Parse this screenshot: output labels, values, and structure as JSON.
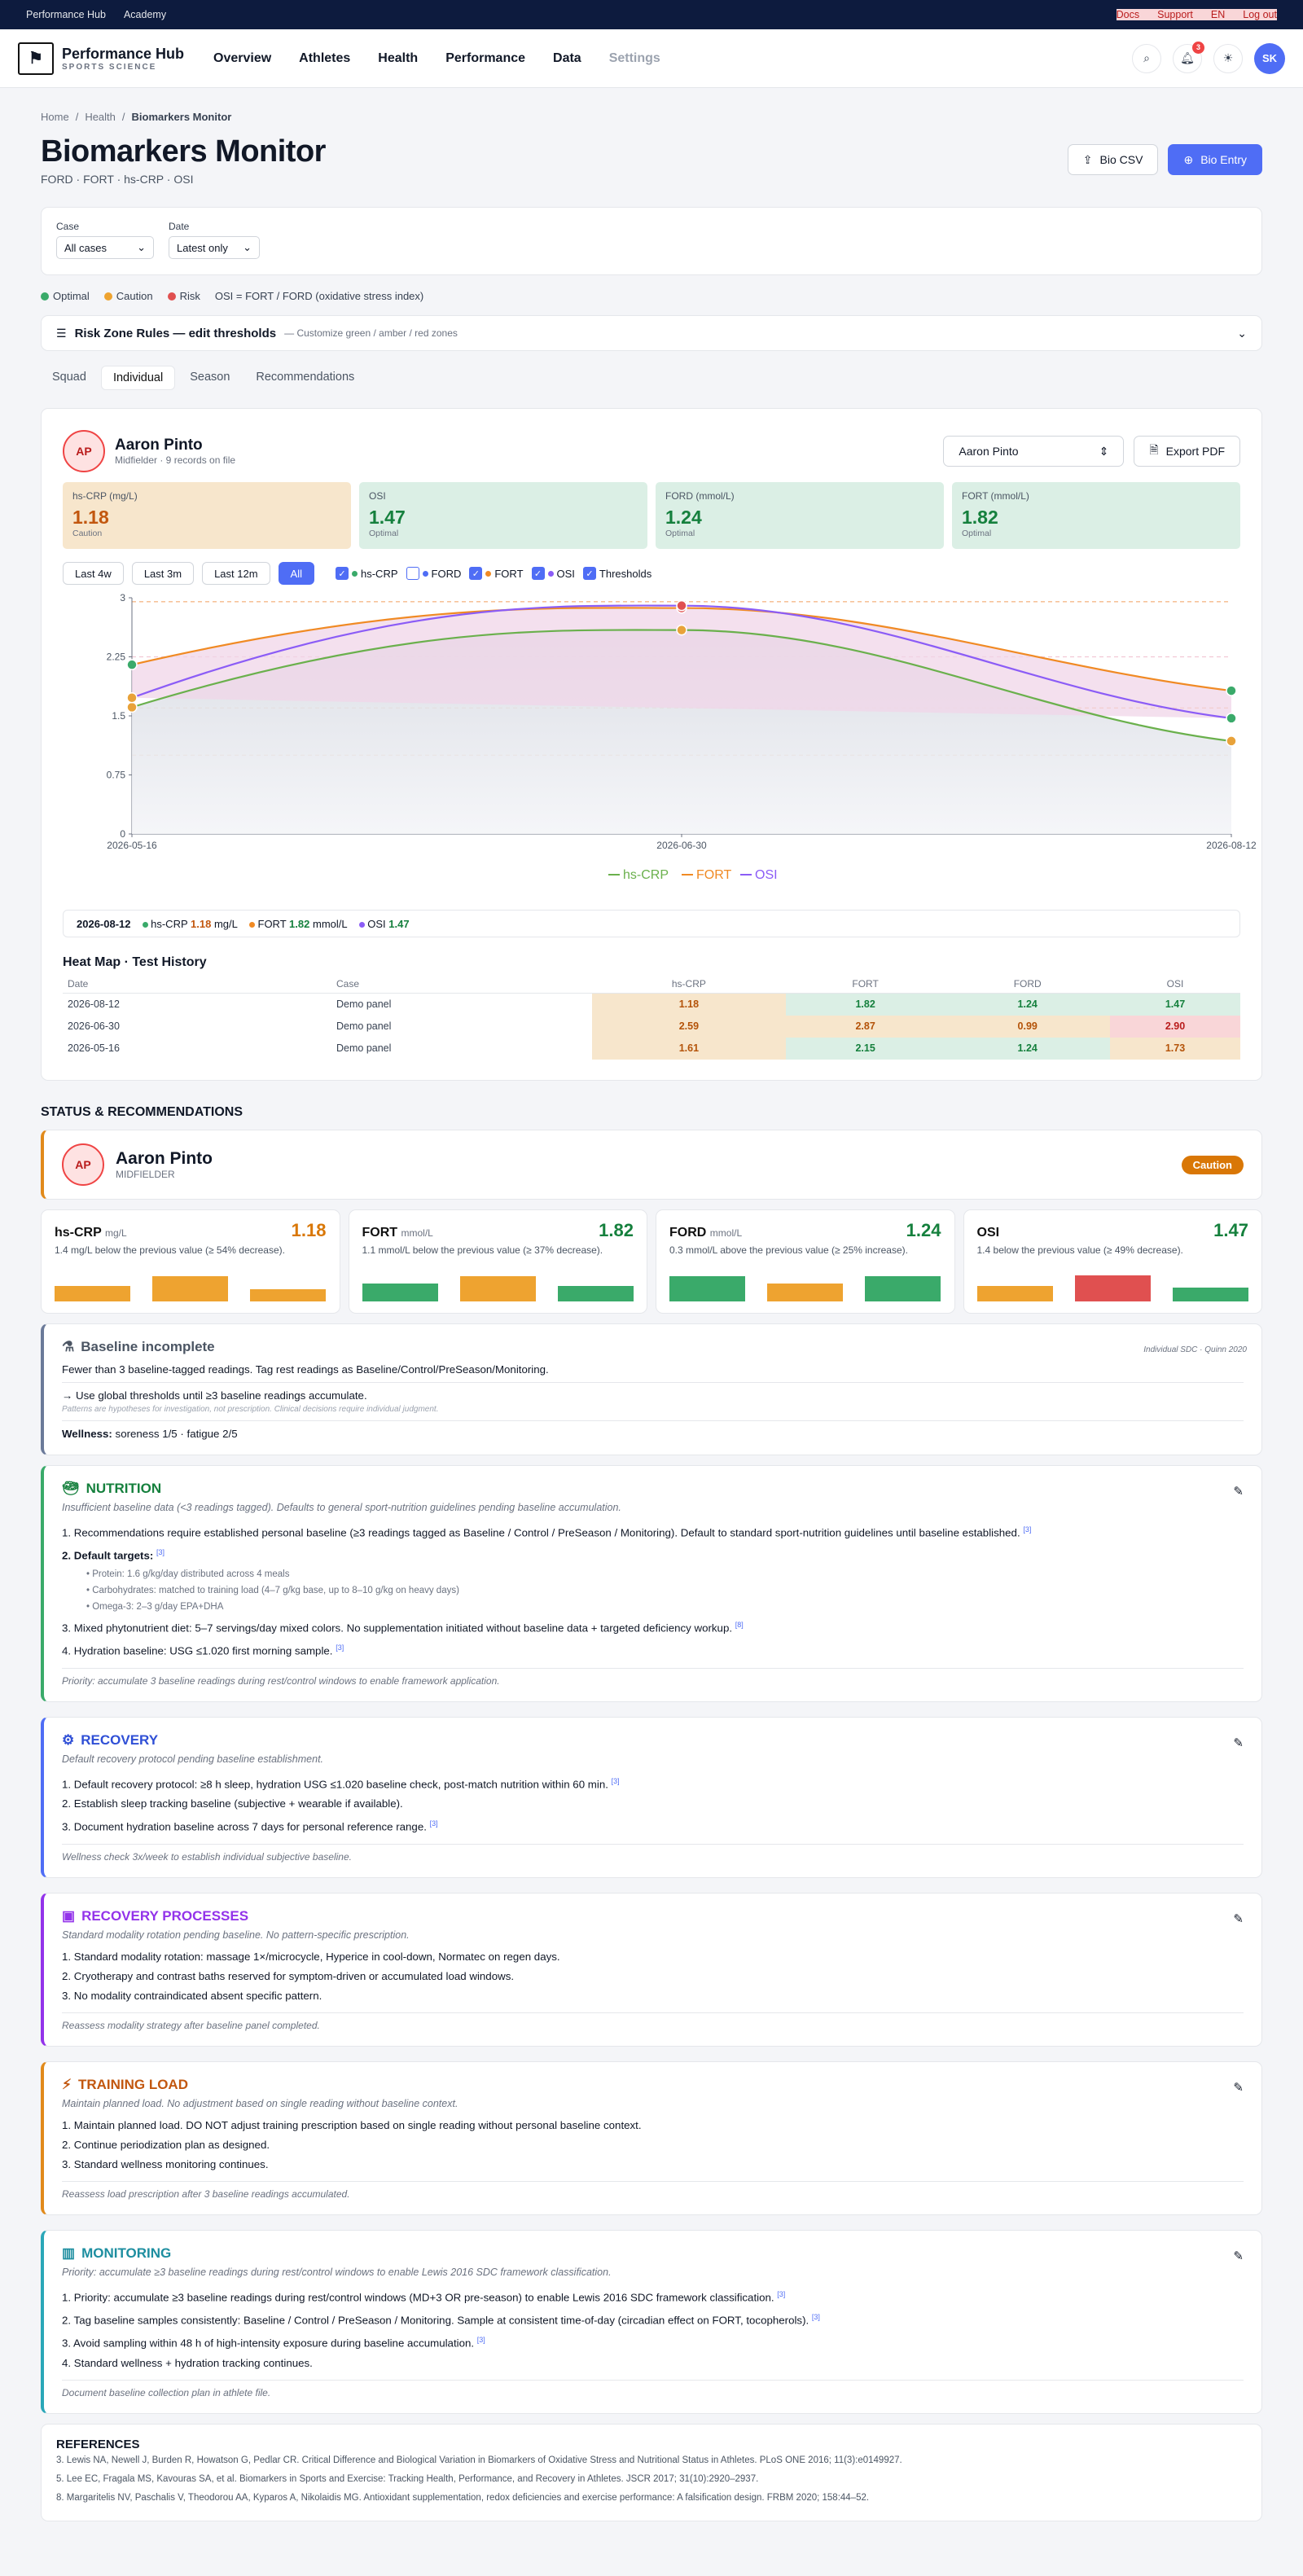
{
  "topbar": {
    "brand": "Performance Hub",
    "academy": "Academy",
    "docs": "Docs",
    "support": "Support",
    "lang": "EN",
    "logout": "Log out"
  },
  "nav": {
    "logo_title": "Performance Hub",
    "logo_sub": "SPORTS SCIENCE",
    "links": [
      "Overview",
      "Athletes",
      "Health",
      "Performance",
      "Data",
      "Settings"
    ],
    "notif_count": "3",
    "avatar": "SK"
  },
  "crumb": {
    "home": "Home",
    "health": "Health",
    "current": "Biomarkers Monitor"
  },
  "page": {
    "title": "Biomarkers Monitor",
    "subtitle": "FORD · FORT · hs-CRP · OSI",
    "csv": "Bio CSV",
    "entry": "Bio Entry"
  },
  "filters": {
    "case_label": "Case",
    "case_value": "All cases",
    "date_label": "Date",
    "date_value": "Latest only"
  },
  "legend": {
    "optimal": "Optimal",
    "caution": "Caution",
    "risk": "Risk",
    "note": "OSI = FORT / FORD (oxidative stress index)"
  },
  "rules": {
    "title": "Risk Zone Rules — edit thresholds",
    "hint": "— Customize green / amber / red zones"
  },
  "tabs": [
    "Squad",
    "Individual",
    "Season",
    "Recommendations"
  ],
  "athlete": {
    "name": "Aaron Pinto",
    "meta": "Midfielder · 9 records on file",
    "initials": "AP",
    "select": "Aaron Pinto",
    "export": "Export PDF"
  },
  "kpis": [
    {
      "label": "hs-CRP (mg/L)",
      "value": "1.18",
      "status": "Caution"
    },
    {
      "label": "OSI",
      "value": "1.47",
      "status": "Optimal"
    },
    {
      "label": "FORD (mmol/L)",
      "value": "1.24",
      "status": "Optimal"
    },
    {
      "label": "FORT (mmol/L)",
      "value": "1.82",
      "status": "Optimal"
    }
  ],
  "ranges": [
    "Last 4w",
    "Last 3m",
    "Last 12m",
    "All"
  ],
  "toggles": {
    "hscrp": "hs-CRP",
    "ford": "FORD",
    "fort": "FORT",
    "osi": "OSI",
    "thr": "Thresholds"
  },
  "chart_data": {
    "type": "line",
    "x": [
      "2026-05-16",
      "2026-06-30",
      "2026-08-12"
    ],
    "ylim": [
      0,
      3
    ],
    "yticks": [
      "0",
      "0.75",
      "1.5",
      "2.25",
      "3"
    ],
    "series": [
      {
        "name": "hs-CRP",
        "values": [
          1.61,
          2.59,
          1.18
        ],
        "color": "#6ab04c"
      },
      {
        "name": "FORT",
        "values": [
          2.15,
          2.87,
          1.82
        ],
        "color": "#f08a24"
      },
      {
        "name": "OSI",
        "values": [
          1.73,
          2.9,
          1.47
        ],
        "color": "#8b5cf6"
      }
    ],
    "point_colors": [
      [
        "#e8a23a",
        "#e8a23a",
        "#e8a23a"
      ],
      [
        "#3aaa6a",
        "#e05050",
        "#3aaa6a"
      ],
      [
        "#e8a23a",
        "#e05050",
        "#3aaa6a"
      ]
    ],
    "threshold_colors": [
      "#f5b98a",
      "#f5b98a",
      "#f2c7d4"
    ],
    "thresholds": [
      1.0,
      1.6,
      2.25,
      2.95
    ],
    "legend": [
      "hs-CRP",
      "FORT",
      "OSI"
    ]
  },
  "readout": {
    "date": "2026-08-12",
    "hscrp_label": "hs-CRP",
    "hscrp": "1.18",
    "hscrp_unit": "mg/L",
    "fort_label": "FORT",
    "fort": "1.82",
    "fort_unit": "mmol/L",
    "osi_label": "OSI",
    "osi": "1.47"
  },
  "heatmap": {
    "title": "Heat Map · Test History",
    "cols": [
      "Date",
      "Case",
      "hs-CRP",
      "FORT",
      "FORD",
      "OSI"
    ],
    "rows": [
      {
        "date": "2026-08-12",
        "case": "Demo panel",
        "v": [
          "1.18",
          "1.82",
          "1.24",
          "1.47"
        ],
        "s": [
          "a",
          "g",
          "g",
          "g"
        ]
      },
      {
        "date": "2026-06-30",
        "case": "Demo panel",
        "v": [
          "2.59",
          "2.87",
          "0.99",
          "2.90"
        ],
        "s": [
          "a",
          "a",
          "a",
          "r"
        ]
      },
      {
        "date": "2026-05-16",
        "case": "Demo panel",
        "v": [
          "1.61",
          "2.15",
          "1.24",
          "1.73"
        ],
        "s": [
          "a",
          "g",
          "g",
          "a"
        ]
      }
    ]
  },
  "status": {
    "heading": "STATUS & RECOMMENDATIONS",
    "role": "MIDFIELDER",
    "pill": "Caution"
  },
  "metrics": [
    {
      "name": "hs-CRP",
      "unit": "mg/L",
      "value": "1.18",
      "delta": "1.4 mg/L below the previous value (≥ 54% decrease).",
      "color": "#d97706",
      "bars": [
        [
          "#eea330",
          0.55
        ],
        [
          "#eea330",
          0.9
        ],
        [
          "#eea330",
          0.45
        ]
      ]
    },
    {
      "name": "FORT",
      "unit": "mmol/L",
      "value": "1.82",
      "delta": "1.1 mmol/L below the previous value (≥ 37% decrease).",
      "color": "#15803d",
      "bars": [
        [
          "#3aaa6a",
          0.65
        ],
        [
          "#eea330",
          0.9
        ],
        [
          "#3aaa6a",
          0.55
        ]
      ]
    },
    {
      "name": "FORD",
      "unit": "mmol/L",
      "value": "1.24",
      "delta": "0.3 mmol/L above the previous value (≥ 25% increase).",
      "color": "#15803d",
      "bars": [
        [
          "#3aaa6a",
          0.9
        ],
        [
          "#eea330",
          0.65
        ],
        [
          "#3aaa6a",
          0.9
        ]
      ]
    },
    {
      "name": "OSI",
      "unit": "",
      "value": "1.47",
      "delta": "1.4 below the previous value (≥ 49% decrease).",
      "color": "#15803d",
      "bars": [
        [
          "#eea330",
          0.55
        ],
        [
          "#e05050",
          0.95
        ],
        [
          "#3aaa6a",
          0.5
        ]
      ]
    }
  ],
  "baseline": {
    "title": "Baseline incomplete",
    "tag": "Individual SDC · Quinn 2020",
    "text": "Fewer than 3 baseline-tagged readings. Tag rest readings as Baseline/Control/PreSeason/Monitoring.",
    "arrow": "→ Use global thresholds until ≥3 baseline readings accumulate.",
    "fine": "Patterns are hypotheses for investigation, not prescription. Clinical decisions require individual judgment.",
    "wellness_label": "Wellness:",
    "wellness": "soreness 1/5 · fatigue 2/5"
  },
  "nutrition": {
    "title": "NUTRITION",
    "intro": "Insufficient baseline data (<3 readings tagged). Defaults to general sport-nutrition guidelines pending baseline accumulation.",
    "i1": "1. Recommendations require established personal baseline (≥3 readings tagged as Baseline / Control / PreSeason / Monitoring). Default to standard sport-nutrition guidelines until baseline established.",
    "i1r": "[3]",
    "i2": "2. Default targets:",
    "i2r": "[3]",
    "s1": "• Protein: 1.6 g/kg/day distributed across 4 meals",
    "s2": "• Carbohydrates: matched to training load (4–7 g/kg base, up to 8–10 g/kg on heavy days)",
    "s3": "• Omega-3: 2–3 g/day EPA+DHA",
    "i3": "3. Mixed phytonutrient diet: 5–7 servings/day mixed colors. No supplementation initiated without baseline data + targeted deficiency workup.",
    "i3r": "[8]",
    "i4": "4. Hydration baseline: USG ≤1.020 first morning sample.",
    "i4r": "[3]",
    "foot": "Priority: accumulate 3 baseline readings during rest/control windows to enable framework application."
  },
  "recovery": {
    "title": "RECOVERY",
    "intro": "Default recovery protocol pending baseline establishment.",
    "i1": "1. Default recovery protocol: ≥8 h sleep, hydration USG ≤1.020 baseline check, post-match nutrition within 60 min.",
    "i1r": "[3]",
    "i2": "2. Establish sleep tracking baseline (subjective + wearable if available).",
    "i3": "3. Document hydration baseline across 7 days for personal reference range.",
    "i3r": "[3]",
    "foot": "Wellness check 3x/week to establish individual subjective baseline."
  },
  "processes": {
    "title": "RECOVERY PROCESSES",
    "intro": "Standard modality rotation pending baseline. No pattern-specific prescription.",
    "i1": "1. Standard modality rotation: massage 1×/microcycle, Hyperice in cool-down, Normatec on regen days.",
    "i2": "2. Cryotherapy and contrast baths reserved for symptom-driven or accumulated load windows.",
    "i3": "3. No modality contraindicated absent specific pattern.",
    "foot": "Reassess modality strategy after baseline panel completed."
  },
  "load": {
    "title": "TRAINING LOAD",
    "intro": "Maintain planned load. No adjustment based on single reading without baseline context.",
    "i1": "1. Maintain planned load. DO NOT adjust training prescription based on single reading without personal baseline context.",
    "i2": "2. Continue periodization plan as designed.",
    "i3": "3. Standard wellness monitoring continues.",
    "foot": "Reassess load prescription after 3 baseline readings accumulated."
  },
  "monitoring": {
    "title": "MONITORING",
    "intro": "Priority: accumulate ≥3 baseline readings during rest/control windows to enable Lewis 2016 SDC framework classification.",
    "i1": "1. Priority: accumulate ≥3 baseline readings during rest/control windows (MD+3 OR pre-season) to enable Lewis 2016 SDC framework classification.",
    "i1r": "[3]",
    "i2": "2. Tag baseline samples consistently: Baseline / Control / PreSeason / Monitoring. Sample at consistent time-of-day (circadian effect on FORT, tocopherols).",
    "i2r": "[3]",
    "i3": "3. Avoid sampling within 48 h of high-intensity exposure during baseline accumulation.",
    "i3r": "[3]",
    "i4": "4. Standard wellness + hydration tracking continues.",
    "foot": "Document baseline collection plan in athlete file."
  },
  "refs": {
    "title": "REFERENCES",
    "r1": "3. Lewis NA, Newell J, Burden R, Howatson G, Pedlar CR. Critical Difference and Biological Variation in Biomarkers of Oxidative Stress and Nutritional Status in Athletes. PLoS ONE 2016; 11(3):e0149927.",
    "r2": "5. Lee EC, Fragala MS, Kavouras SA, et al. Biomarkers in Sports and Exercise: Tracking Health, Performance, and Recovery in Athletes. JSCR 2017; 31(10):2920–2937.",
    "r3": "8. Margaritelis NV, Paschalis V, Theodorou AA, Kyparos A, Nikolaidis MG. Antioxidant supplementation, redox deficiencies and exercise performance: A falsification design. FRBM 2020; 158:44–52."
  }
}
